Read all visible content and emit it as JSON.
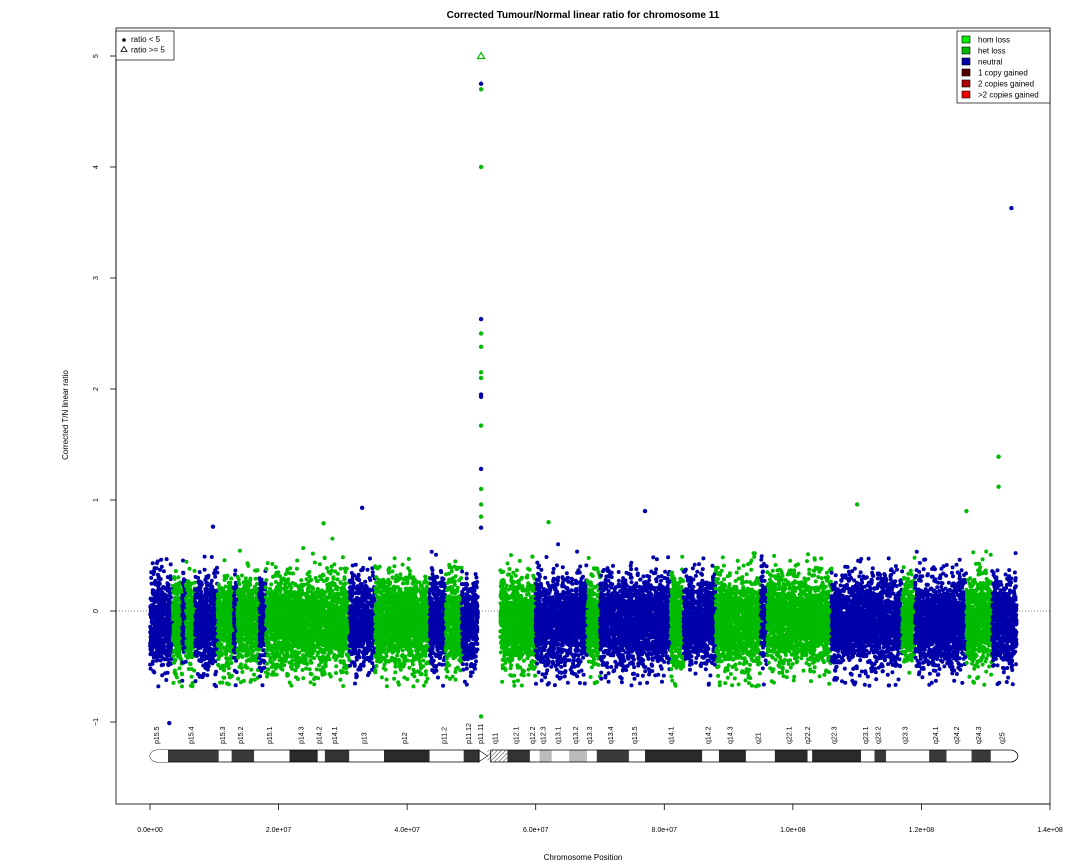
{
  "chart_data": {
    "type": "scatter",
    "title": "Corrected Tumour/Normal linear ratio for chromosome  11",
    "xlabel": "Chromosome Position",
    "ylabel": "Corrected T/N linear ratio",
    "xlim": [
      -5000000,
      140000000
    ],
    "ylim": [
      -1.75,
      5.35
    ],
    "x_ticks": [
      0,
      20000000,
      40000000,
      60000000,
      80000000,
      100000000,
      120000000,
      140000000
    ],
    "x_tick_labels": [
      "0.0e+00",
      "2.0e+07",
      "4.0e+07",
      "6.0e+07",
      "8.0e+07",
      "1.0e+08",
      "1.2e+08",
      "1.4e+08"
    ],
    "y_ticks": [
      -1,
      0,
      1,
      2,
      3,
      4,
      5
    ],
    "y_tick_labels": [
      "−1",
      "0",
      "1",
      "2",
      "3",
      "4",
      "5"
    ],
    "reference_line_y": 0,
    "colors": {
      "hom_loss": "#00ee00",
      "het_loss": "#00bb00",
      "neutral": "#0000aa",
      "gain_1": "#550000",
      "gain_2": "#aa0000",
      "gain_more": "#ee0000"
    },
    "status_legend": {
      "placement": "top-right",
      "entries": [
        {
          "label": "hom loss",
          "color": "#00ee00"
        },
        {
          "label": "het loss",
          "color": "#00bb00"
        },
        {
          "label": "neutral",
          "color": "#0000aa"
        },
        {
          "label": "1 copy gained",
          "color": "#550000"
        },
        {
          "label": "2 copies gained",
          "color": "#aa0000"
        },
        {
          "label": ">2 copies gained",
          "color": "#ee0000"
        }
      ]
    },
    "shape_legend": {
      "placement": "top-left",
      "entries": [
        {
          "label": "ratio < 5",
          "shape": "dot"
        },
        {
          "label": "ratio >= 5",
          "shape": "triangle"
        }
      ]
    },
    "segments": [
      {
        "start": 0,
        "end": 3500000,
        "status": "neutral"
      },
      {
        "start": 3500000,
        "end": 5000000,
        "status": "het_loss"
      },
      {
        "start": 5000000,
        "end": 5600000,
        "status": "neutral"
      },
      {
        "start": 5600000,
        "end": 7000000,
        "status": "het_loss"
      },
      {
        "start": 7000000,
        "end": 10500000,
        "status": "neutral"
      },
      {
        "start": 10500000,
        "end": 13000000,
        "status": "het_loss"
      },
      {
        "start": 13000000,
        "end": 13600000,
        "status": "neutral"
      },
      {
        "start": 13600000,
        "end": 17000000,
        "status": "het_loss"
      },
      {
        "start": 17000000,
        "end": 18000000,
        "status": "neutral"
      },
      {
        "start": 18000000,
        "end": 31000000,
        "status": "het_loss"
      },
      {
        "start": 31000000,
        "end": 35000000,
        "status": "neutral"
      },
      {
        "start": 35000000,
        "end": 43500000,
        "status": "het_loss"
      },
      {
        "start": 43500000,
        "end": 46000000,
        "status": "neutral"
      },
      {
        "start": 46000000,
        "end": 48500000,
        "status": "het_loss"
      },
      {
        "start": 48500000,
        "end": 51000000,
        "status": "neutral"
      },
      {
        "start": 54500000,
        "end": 60000000,
        "status": "het_loss"
      },
      {
        "start": 60000000,
        "end": 68000000,
        "status": "neutral"
      },
      {
        "start": 68000000,
        "end": 70000000,
        "status": "het_loss"
      },
      {
        "start": 70000000,
        "end": 81000000,
        "status": "neutral"
      },
      {
        "start": 81000000,
        "end": 83000000,
        "status": "het_loss"
      },
      {
        "start": 83000000,
        "end": 88000000,
        "status": "neutral"
      },
      {
        "start": 88000000,
        "end": 95000000,
        "status": "het_loss"
      },
      {
        "start": 95000000,
        "end": 96000000,
        "status": "neutral"
      },
      {
        "start": 96000000,
        "end": 106000000,
        "status": "het_loss"
      },
      {
        "start": 106000000,
        "end": 117000000,
        "status": "neutral"
      },
      {
        "start": 117000000,
        "end": 119000000,
        "status": "het_loss"
      },
      {
        "start": 119000000,
        "end": 127000000,
        "status": "neutral"
      },
      {
        "start": 127000000,
        "end": 131000000,
        "status": "het_loss"
      },
      {
        "start": 131000000,
        "end": 134800000,
        "status": "neutral"
      }
    ],
    "outliers": [
      {
        "x": 51500000,
        "y": 5.0,
        "status": "het_loss",
        "shape": "triangle"
      },
      {
        "x": 51500000,
        "y": 4.75,
        "status": "neutral"
      },
      {
        "x": 51500000,
        "y": 4.7,
        "status": "het_loss"
      },
      {
        "x": 51500000,
        "y": 4.0,
        "status": "het_loss"
      },
      {
        "x": 51500000,
        "y": 2.63,
        "status": "neutral"
      },
      {
        "x": 51500000,
        "y": 2.5,
        "status": "het_loss"
      },
      {
        "x": 51500000,
        "y": 2.38,
        "status": "het_loss"
      },
      {
        "x": 51500000,
        "y": 2.15,
        "status": "het_loss"
      },
      {
        "x": 51500000,
        "y": 2.1,
        "status": "het_loss"
      },
      {
        "x": 51500000,
        "y": 1.95,
        "status": "neutral"
      },
      {
        "x": 51500000,
        "y": 1.93,
        "status": "neutral"
      },
      {
        "x": 51500000,
        "y": 1.67,
        "status": "het_loss"
      },
      {
        "x": 51500000,
        "y": 1.28,
        "status": "neutral"
      },
      {
        "x": 51500000,
        "y": 1.1,
        "status": "het_loss"
      },
      {
        "x": 51500000,
        "y": 0.96,
        "status": "het_loss"
      },
      {
        "x": 51500000,
        "y": 0.85,
        "status": "het_loss"
      },
      {
        "x": 51500000,
        "y": 0.75,
        "status": "neutral"
      },
      {
        "x": 51500000,
        "y": -0.95,
        "status": "het_loss"
      },
      {
        "x": 134000000,
        "y": 3.63,
        "status": "neutral"
      },
      {
        "x": 132000000,
        "y": 1.39,
        "status": "het_loss"
      },
      {
        "x": 132000000,
        "y": 1.12,
        "status": "het_loss"
      },
      {
        "x": 110000000,
        "y": 0.96,
        "status": "het_loss"
      },
      {
        "x": 33000000,
        "y": 0.93,
        "status": "neutral"
      },
      {
        "x": 77000000,
        "y": 0.9,
        "status": "neutral"
      },
      {
        "x": 127000000,
        "y": 0.9,
        "status": "het_loss"
      },
      {
        "x": 27000000,
        "y": 0.79,
        "status": "het_loss"
      },
      {
        "x": 9800000,
        "y": 0.76,
        "status": "neutral"
      },
      {
        "x": 62000000,
        "y": 0.8,
        "status": "het_loss"
      },
      {
        "x": 3000000,
        "y": -1.01,
        "status": "neutral"
      }
    ],
    "ideogram": {
      "centromere": 52000000,
      "p_end": 51200000,
      "q_start": 53000000,
      "end": 135000000,
      "bands": [
        {
          "name": "p15.5",
          "start": 0,
          "end": 2800000,
          "stain": "gneg"
        },
        {
          "name": "p15.4",
          "start": 2800000,
          "end": 10700000,
          "stain": "gpos50"
        },
        {
          "name": "p15.3",
          "start": 10700000,
          "end": 12700000,
          "stain": "gneg"
        },
        {
          "name": "p15.2",
          "start": 12700000,
          "end": 16200000,
          "stain": "gpos50"
        },
        {
          "name": "p15.1",
          "start": 16200000,
          "end": 21700000,
          "stain": "gneg"
        },
        {
          "name": "p14.3",
          "start": 21700000,
          "end": 26100000,
          "stain": "gpos100"
        },
        {
          "name": "p14.2",
          "start": 26100000,
          "end": 27200000,
          "stain": "gneg"
        },
        {
          "name": "p14.1",
          "start": 27200000,
          "end": 31000000,
          "stain": "gpos75"
        },
        {
          "name": "p13",
          "start": 31000000,
          "end": 36400000,
          "stain": "gneg"
        },
        {
          "name": "p12",
          "start": 36400000,
          "end": 43500000,
          "stain": "gpos100"
        },
        {
          "name": "p11.2",
          "start": 43500000,
          "end": 48800000,
          "stain": "gneg"
        },
        {
          "name": "p11.12",
          "start": 48800000,
          "end": 51100000,
          "stain": "gpos75"
        },
        {
          "name": "p11.11",
          "start": 51100000,
          "end": 52500000,
          "stain": "acen"
        },
        {
          "name": "q11",
          "start": 52500000,
          "end": 55600000,
          "stain": "stalk"
        },
        {
          "name": "q12.1",
          "start": 55600000,
          "end": 59100000,
          "stain": "gpos75"
        },
        {
          "name": "q12.2",
          "start": 59100000,
          "end": 60600000,
          "stain": "gneg"
        },
        {
          "name": "q12.3",
          "start": 60600000,
          "end": 62500000,
          "stain": "gpos25"
        },
        {
          "name": "q13.1",
          "start": 62500000,
          "end": 65200000,
          "stain": "gneg"
        },
        {
          "name": "q13.2",
          "start": 65200000,
          "end": 68000000,
          "stain": "gpos25"
        },
        {
          "name": "q13.3",
          "start": 68000000,
          "end": 69500000,
          "stain": "gneg"
        },
        {
          "name": "q13.4",
          "start": 69500000,
          "end": 74500000,
          "stain": "gpos50"
        },
        {
          "name": "q13.5",
          "start": 74500000,
          "end": 77000000,
          "stain": "gneg"
        },
        {
          "name": "q14.1",
          "start": 77000000,
          "end": 85900000,
          "stain": "gpos100"
        },
        {
          "name": "q14.2",
          "start": 85900000,
          "end": 88500000,
          "stain": "gneg"
        },
        {
          "name": "q14.3",
          "start": 88500000,
          "end": 92700000,
          "stain": "gpos100"
        },
        {
          "name": "q21",
          "start": 92700000,
          "end": 97200000,
          "stain": "gneg"
        },
        {
          "name": "q22.1",
          "start": 97200000,
          "end": 102300000,
          "stain": "gpos100"
        },
        {
          "name": "q22.2",
          "start": 102300000,
          "end": 103000000,
          "stain": "gneg"
        },
        {
          "name": "q22.3",
          "start": 103000000,
          "end": 110600000,
          "stain": "gpos100"
        },
        {
          "name": "q23.1",
          "start": 110600000,
          "end": 112700000,
          "stain": "gneg"
        },
        {
          "name": "q23.2",
          "start": 112700000,
          "end": 114500000,
          "stain": "gpos50"
        },
        {
          "name": "q23.3",
          "start": 114500000,
          "end": 121200000,
          "stain": "gneg"
        },
        {
          "name": "q24.1",
          "start": 121200000,
          "end": 123900000,
          "stain": "gpos50"
        },
        {
          "name": "q24.2",
          "start": 123900000,
          "end": 127800000,
          "stain": "gneg"
        },
        {
          "name": "q24.3",
          "start": 127800000,
          "end": 130800000,
          "stain": "gpos50"
        },
        {
          "name": "q25",
          "start": 130800000,
          "end": 135000000,
          "stain": "gneg"
        }
      ]
    }
  }
}
